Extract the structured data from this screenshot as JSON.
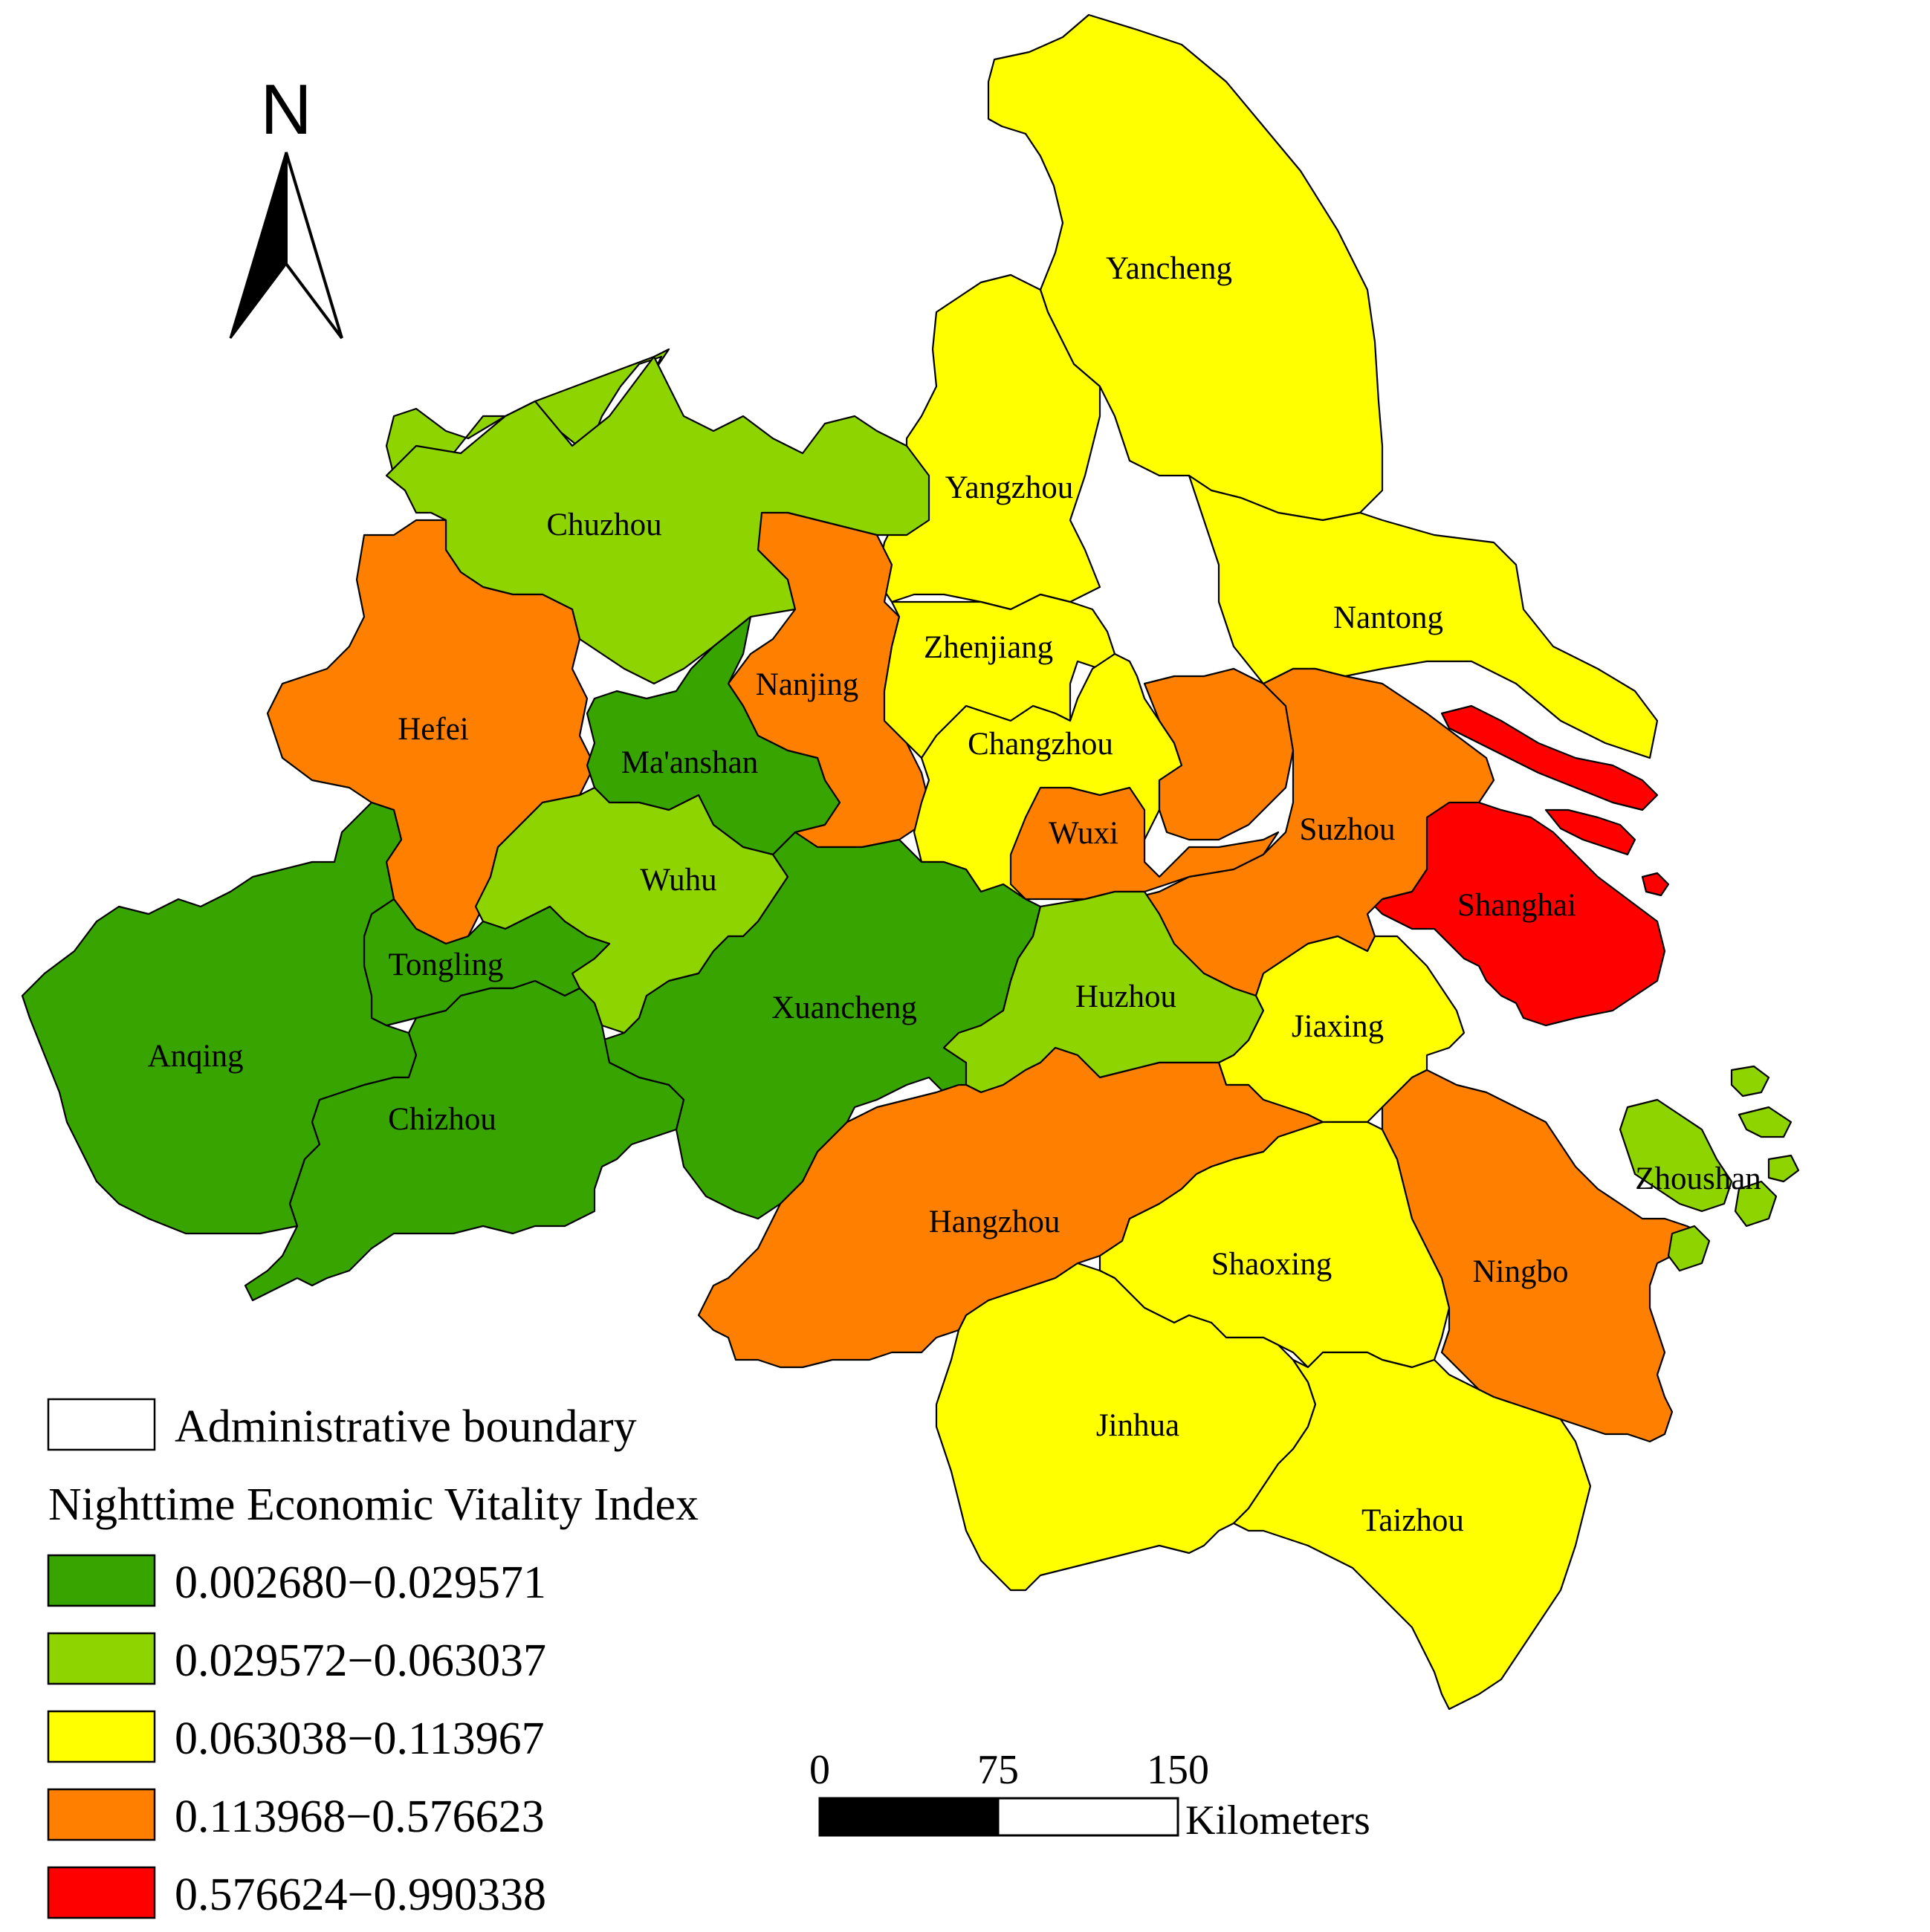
{
  "colors": {
    "class1": "#37a400",
    "class2": "#8ed400",
    "class3": "#ffff00",
    "class4": "#ff8000",
    "class5": "#ff0000"
  },
  "north_arrow": {
    "label": "N"
  },
  "legend": {
    "boundary_label": "Administrative boundary",
    "index_title": "Nighttime Economic Vitality Index",
    "classes": [
      {
        "range": "0.002680−0.029571",
        "color": "#37a400"
      },
      {
        "range": "0.029572−0.063037",
        "color": "#8ed400"
      },
      {
        "range": "0.063038−0.113967",
        "color": "#ffff00"
      },
      {
        "range": "0.113968−0.576623",
        "color": "#ff8000"
      },
      {
        "range": "0.576624−0.990338",
        "color": "#ff0000"
      }
    ]
  },
  "scale_bar": {
    "ticks": [
      "0",
      "75",
      "150"
    ],
    "unit": "Kilometers"
  },
  "cities": {
    "yancheng": "Yancheng",
    "yangzhou": "Yangzhou",
    "nantong": "Nantong",
    "chuzhou": "Chuzhou",
    "nanjing": "Nanjing",
    "zhenjiang": "Zhenjiang",
    "hefei": "Hefei",
    "maanshan": "Ma'anshan",
    "changzhou": "Changzhou",
    "wuxi": "Wuxi",
    "suzhou": "Suzhou",
    "wuhu": "Wuhu",
    "shanghai": "Shanghai",
    "tongling": "Tongling",
    "xuancheng": "Xuancheng",
    "huzhou": "Huzhou",
    "jiaxing": "Jiaxing",
    "anqing": "Anqing",
    "chizhou": "Chizhou",
    "zhoushan": "Zhoushan",
    "hangzhou": "Hangzhou",
    "shaoxing": "Shaoxing",
    "ningbo": "Ningbo",
    "jinhua": "Jinhua",
    "taizhou": "Taizhou"
  }
}
